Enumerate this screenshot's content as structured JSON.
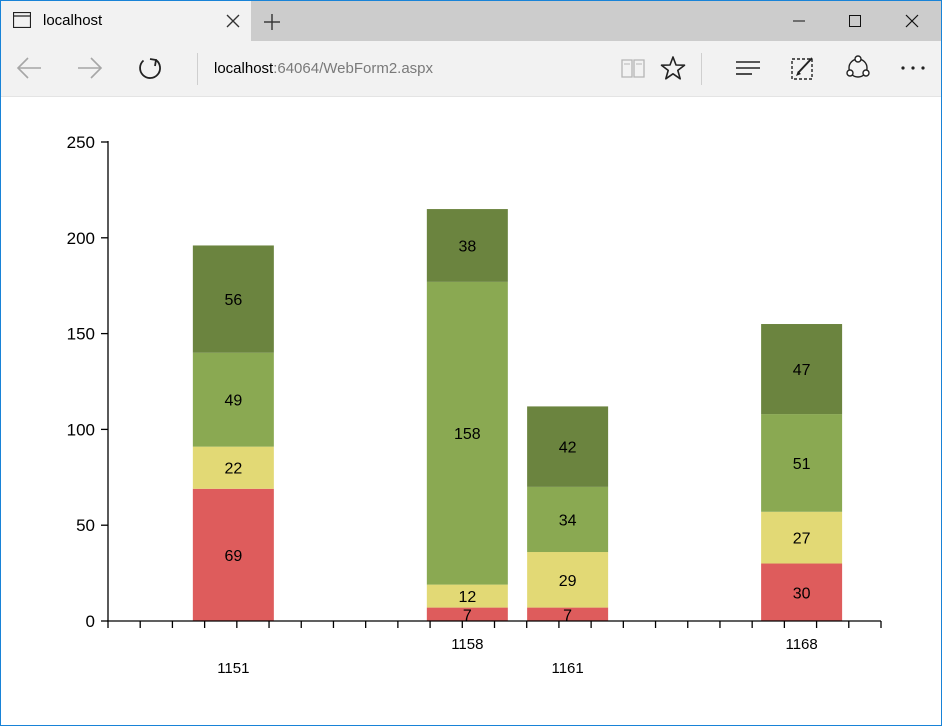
{
  "tab": {
    "title": "localhost"
  },
  "address": {
    "host": "localhost",
    "path": ":64064/WebForm2.aspx"
  },
  "icons": {
    "page": "page-icon",
    "close_tab": "close-icon",
    "new_tab": "plus-icon",
    "minimize": "minimize-icon",
    "maximize": "maximize-icon",
    "close_window": "close-icon",
    "back": "back-arrow-icon",
    "forward": "forward-arrow-icon",
    "refresh": "refresh-icon",
    "reading_view": "book-icon",
    "favorite": "star-icon",
    "hub": "hub-icon",
    "web_note": "web-note-icon",
    "share": "share-icon",
    "more": "more-icon"
  },
  "chart_data": {
    "type": "bar",
    "stacked": true,
    "y_ticks": [
      "0",
      "50",
      "100",
      "150",
      "200",
      "250"
    ],
    "ylim": [
      0,
      250
    ],
    "colors": [
      "#de5c5c",
      "#e2d975",
      "#8aa952",
      "#6b843f"
    ],
    "columns": [
      {
        "label": "1151",
        "label_row": 2,
        "position": 1.5,
        "segments": [
          69,
          22,
          49,
          56
        ]
      },
      {
        "label": "1158",
        "label_row": 1,
        "position": 4.3,
        "segments": [
          7,
          12,
          158,
          38
        ]
      },
      {
        "label": "1161",
        "label_row": 2,
        "position": 5.5,
        "segments": [
          7,
          29,
          34,
          42
        ]
      },
      {
        "label": "1168",
        "label_row": 1,
        "position": 8.3,
        "segments": [
          30,
          27,
          51,
          47
        ]
      }
    ],
    "x_range": [
      0,
      9.25
    ],
    "x_tick_count": 24
  }
}
